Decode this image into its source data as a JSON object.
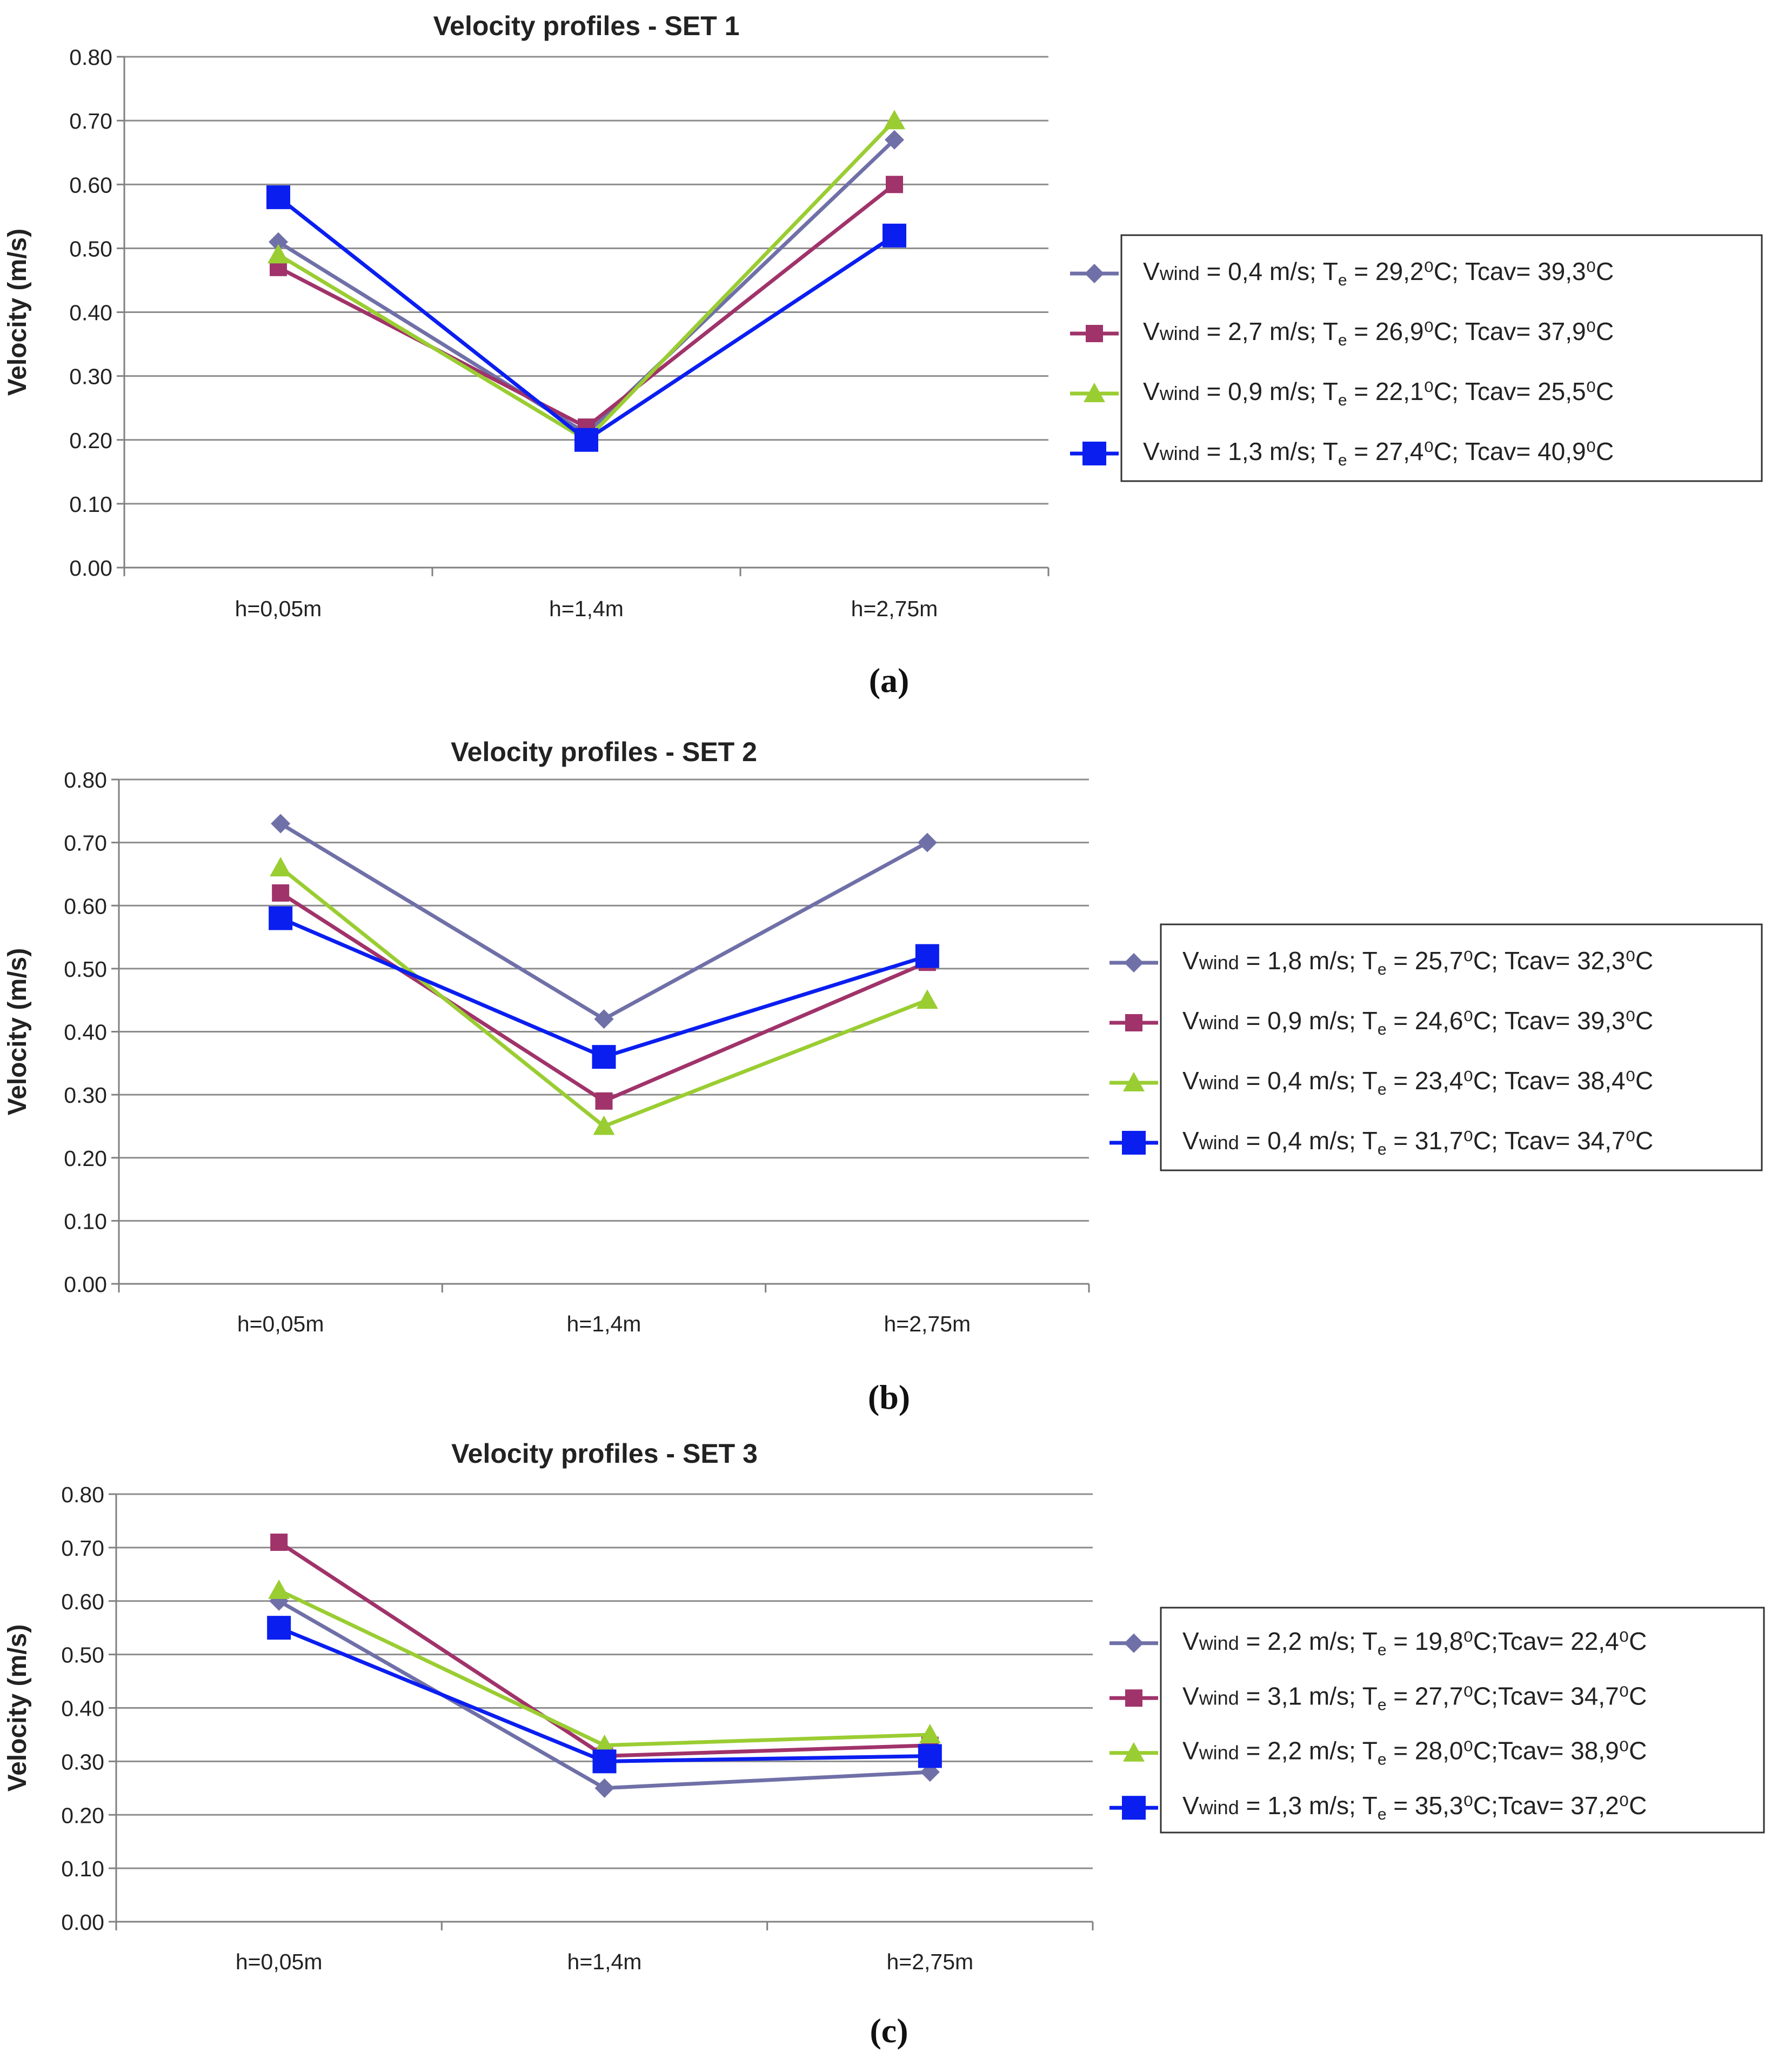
{
  "colors": {
    "series1": "#7070A8",
    "series2": "#A0336A",
    "series3": "#9ACD32",
    "series4": "#0A1EF0",
    "grid": "#8C8C8C",
    "axis": "#808080",
    "text": "#222222"
  },
  "chart_data": [
    {
      "type": "line",
      "title": "Velocity profiles - SET 1",
      "caption": "(a)",
      "xlabel": "",
      "ylabel": "Velocity (m/s)",
      "ylim": [
        0,
        0.8
      ],
      "yticks": [
        "0.00",
        "0.10",
        "0.20",
        "0.30",
        "0.40",
        "0.50",
        "0.60",
        "0.70",
        "0.80"
      ],
      "categories": [
        "h=0,05m",
        "h=1,4m",
        "h=2,75m"
      ],
      "grid": true,
      "legend_position": "right",
      "series": [
        {
          "name": "Vwind = 0,4 m/s; Te = 29,2⁰C; Tcav= 39,3⁰C",
          "marker": "diamond",
          "values": [
            0.51,
            0.21,
            0.67
          ],
          "legend": {
            "pre": "V",
            "sub": "wind",
            "mid": " = 0,4 m/s; T",
            "sub2": "e",
            "post": " = 29,2⁰C; Tcav= 39,3⁰C"
          }
        },
        {
          "name": "Vwind = 2,7 m/s; Te = 26,9⁰C; Tcav= 37,9⁰C",
          "marker": "square",
          "values": [
            0.47,
            0.22,
            0.6
          ],
          "legend": {
            "pre": "V",
            "sub": "wind",
            "mid": " = 2,7 m/s; T",
            "sub2": "e",
            "post": " = 26,9⁰C; Tcav= 37,9⁰C"
          }
        },
        {
          "name": "Vwind = 0,9 m/s; Te = 22,1⁰C; Tcav= 25,5⁰C",
          "marker": "triangle",
          "values": [
            0.49,
            0.2,
            0.7
          ],
          "legend": {
            "pre": "V",
            "sub": "wind",
            "mid": " = 0,9 m/s; T",
            "sub2": "e",
            "post": " = 22,1⁰C; Tcav= 25,5⁰C"
          }
        },
        {
          "name": "Vwind = 1,3 m/s; Te = 27,4⁰C; Tcav= 40,9⁰C",
          "marker": "bigsquare",
          "values": [
            0.58,
            0.2,
            0.52
          ],
          "legend": {
            "pre": "V",
            "sub": "wind",
            "mid": " = 1,3 m/s; T",
            "sub2": "e",
            "post": " = 27,4⁰C; Tcav= 40,9⁰C"
          }
        }
      ]
    },
    {
      "type": "line",
      "title": "Velocity profiles - SET 2",
      "caption": "(b)",
      "xlabel": "",
      "ylabel": "Velocity (m/s)",
      "ylim": [
        0,
        0.8
      ],
      "yticks": [
        "0.00",
        "0.10",
        "0.20",
        "0.30",
        "0.40",
        "0.50",
        "0.60",
        "0.70",
        "0.80"
      ],
      "categories": [
        "h=0,05m",
        "h=1,4m",
        "h=2,75m"
      ],
      "grid": true,
      "legend_position": "right",
      "series": [
        {
          "name": "Vwind = 1,8 m/s; Te = 25,7⁰C; Tcav= 32,3⁰C",
          "marker": "diamond",
          "values": [
            0.73,
            0.42,
            0.7
          ],
          "legend": {
            "pre": "V",
            "sub": "wind",
            "mid": " = 1,8 m/s; T",
            "sub2": "e",
            "post": " = 25,7⁰C; Tcav= 32,3⁰C"
          }
        },
        {
          "name": "Vwind = 0,9 m/s; Te = 24,6⁰C; Tcav= 39,3⁰C",
          "marker": "square",
          "values": [
            0.62,
            0.29,
            0.51
          ],
          "legend": {
            "pre": "V",
            "sub": "wind",
            "mid": " = 0,9 m/s; T",
            "sub2": "e",
            "post": " = 24,6⁰C; Tcav= 39,3⁰C"
          }
        },
        {
          "name": "Vwind = 0,4 m/s; Te = 23,4⁰C; Tcav= 38,4⁰C",
          "marker": "triangle",
          "values": [
            0.66,
            0.25,
            0.45
          ],
          "legend": {
            "pre": "V",
            "sub": "wind",
            "mid": " = 0,4 m/s; T",
            "sub2": "e",
            "post": " = 23,4⁰C; Tcav= 38,4⁰C"
          }
        },
        {
          "name": "Vwind = 0,4 m/s; Te = 31,7⁰C; Tcav= 34,7⁰C",
          "marker": "bigsquare",
          "values": [
            0.58,
            0.36,
            0.52
          ],
          "legend": {
            "pre": "V",
            "sub": "wind",
            "mid": " = 0,4 m/s; T",
            "sub2": "e",
            "post": " = 31,7⁰C; Tcav= 34,7⁰C"
          }
        }
      ]
    },
    {
      "type": "line",
      "title": "Velocity profiles - SET 3",
      "caption": "(c)",
      "xlabel": "",
      "ylabel": "Velocity (m/s)",
      "ylim": [
        0,
        0.8
      ],
      "yticks": [
        "0.00",
        "0.10",
        "0.20",
        "0.30",
        "0.40",
        "0.50",
        "0.60",
        "0.70",
        "0.80"
      ],
      "categories": [
        "h=0,05m",
        "h=1,4m",
        "h=2,75m"
      ],
      "grid": true,
      "legend_position": "right",
      "series": [
        {
          "name": "Vwind = 2,2 m/s; Te = 19,8⁰C;Tcav= 22,4⁰C",
          "marker": "diamond",
          "values": [
            0.6,
            0.25,
            0.28
          ],
          "legend": {
            "pre": "V",
            "sub": "wind",
            "mid": " = 2,2 m/s; T",
            "sub2": "e",
            "post": " = 19,8⁰C;Tcav= 22,4⁰C"
          }
        },
        {
          "name": "Vwind = 3,1 m/s; Te = 27,7⁰C;Tcav= 34,7⁰C",
          "marker": "square",
          "values": [
            0.71,
            0.31,
            0.33
          ],
          "legend": {
            "pre": "V",
            "sub": "wind",
            "mid": " = 3,1 m/s; T",
            "sub2": "e",
            "post": " = 27,7⁰C;Tcav= 34,7⁰C"
          }
        },
        {
          "name": "Vwind = 2,2 m/s; Te = 28,0⁰C;Tcav= 38,9⁰C",
          "marker": "triangle",
          "values": [
            0.62,
            0.33,
            0.35
          ],
          "legend": {
            "pre": "V",
            "sub": "wind",
            "mid": " = 2,2 m/s; T",
            "sub2": "e",
            "post": " = 28,0⁰C;Tcav= 38,9⁰C"
          }
        },
        {
          "name": "Vwind = 1,3 m/s; Te = 35,3⁰C;Tcav= 37,2⁰C",
          "marker": "bigsquare",
          "values": [
            0.55,
            0.3,
            0.31
          ],
          "legend": {
            "pre": "V",
            "sub": "wind",
            "mid": " = 1,3 m/s; T",
            "sub2": "e",
            "post": " = 35,3⁰C;Tcav= 37,2⁰C"
          }
        }
      ]
    }
  ]
}
